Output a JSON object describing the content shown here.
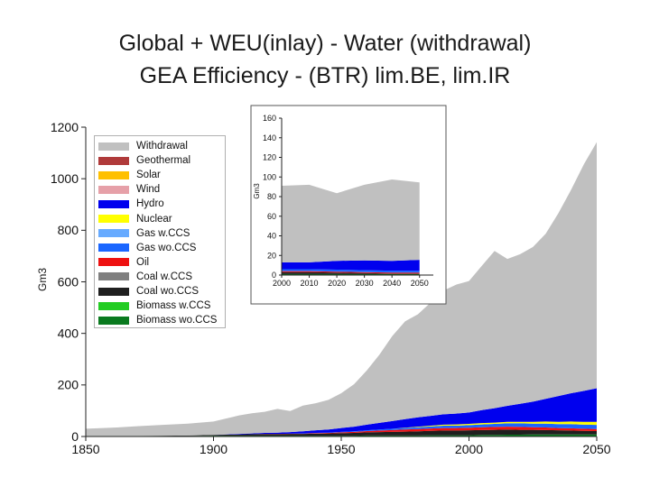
{
  "title": {
    "line1": "Global + WEU(inlay) - Water (withdrawal)",
    "line2": "GEA Efficiency - (BTR) lim.BE, lim.IR"
  },
  "chart_data": [
    {
      "type": "area",
      "ylabel": "Gm3",
      "xlim": [
        1850,
        2050
      ],
      "ylim": [
        0,
        1200
      ],
      "x_ticks": [
        "1850",
        "1900",
        "1950",
        "2000",
        "2050"
      ],
      "y_ticks": [
        "0",
        "200",
        "400",
        "600",
        "800",
        "1000",
        "1200"
      ],
      "legend": [
        "Withdrawal",
        "Geothermal",
        "Solar",
        "Wind",
        "Hydro",
        "Nuclear",
        "Gas w.CCS",
        "Gas wo.CCS",
        "Oil",
        "Coal w.CCS",
        "Coal wo.CCS",
        "Biomass w.CCS",
        "Biomass wo.CCS"
      ],
      "legend_position": "top-left",
      "x": [
        1850,
        1860,
        1870,
        1880,
        1890,
        1900,
        1905,
        1910,
        1915,
        1920,
        1925,
        1930,
        1935,
        1940,
        1945,
        1950,
        1955,
        1960,
        1965,
        1970,
        1975,
        1980,
        1985,
        1990,
        1995,
        2000,
        2005,
        2010,
        2015,
        2020,
        2025,
        2030,
        2035,
        2040,
        2045,
        2050
      ],
      "stack_order": [
        "Biomass wo.CCS",
        "Coal wo.CCS",
        "Oil",
        "Gas wo.CCS",
        "Nuclear",
        "Hydro",
        "Withdrawal"
      ],
      "series": [
        {
          "name": "Biomass wo.CCS",
          "color": "#0a7a1f",
          "values": [
            2,
            2,
            2,
            2,
            2,
            3,
            3,
            3,
            3,
            3,
            3,
            3,
            3,
            3,
            3,
            3,
            3,
            4,
            4,
            4,
            4,
            4,
            5,
            5,
            5,
            5,
            6,
            6,
            7,
            7,
            8,
            8,
            8,
            8,
            8,
            8
          ]
        },
        {
          "name": "Coal wo.CCS",
          "color": "#1f1f1f",
          "values": [
            0,
            0,
            0,
            1,
            2,
            3,
            4,
            5,
            6,
            6,
            6,
            7,
            7,
            8,
            9,
            10,
            11,
            12,
            13,
            14,
            15,
            16,
            17,
            18,
            18,
            19,
            19,
            20,
            20,
            19,
            18,
            17,
            16,
            15,
            14,
            13
          ]
        },
        {
          "name": "Oil",
          "color": "#ee1111",
          "values": [
            0,
            0,
            0,
            0,
            0,
            0,
            0,
            0,
            0,
            1,
            1,
            1,
            1,
            2,
            2,
            3,
            4,
            5,
            6,
            7,
            8,
            9,
            9,
            10,
            10,
            10,
            11,
            11,
            11,
            11,
            10,
            10,
            9,
            9,
            8,
            8
          ]
        },
        {
          "name": "Gas wo.CCS",
          "color": "#1a66ff",
          "values": [
            0,
            0,
            0,
            0,
            0,
            0,
            0,
            0,
            0,
            0,
            0,
            0,
            1,
            1,
            1,
            2,
            2,
            3,
            4,
            5,
            6,
            7,
            8,
            9,
            9,
            10,
            11,
            12,
            13,
            14,
            14,
            15,
            15,
            16,
            16,
            16
          ]
        },
        {
          "name": "Nuclear",
          "color": "#ffff00",
          "values": [
            0,
            0,
            0,
            0,
            0,
            0,
            0,
            0,
            0,
            0,
            0,
            0,
            0,
            0,
            0,
            0,
            0,
            0,
            0,
            0,
            1,
            2,
            3,
            4,
            5,
            5,
            5,
            5,
            6,
            6,
            7,
            8,
            9,
            10,
            11,
            12
          ]
        },
        {
          "name": "Hydro",
          "color": "#0000ee",
          "values": [
            0,
            0,
            0,
            0,
            0,
            0,
            1,
            2,
            3,
            4,
            5,
            6,
            8,
            10,
            12,
            15,
            18,
            22,
            26,
            30,
            33,
            36,
            38,
            40,
            42,
            44,
            50,
            56,
            62,
            70,
            78,
            88,
            100,
            110,
            120,
            130
          ]
        },
        {
          "name": "Withdrawal",
          "color": "#c0c0c0",
          "values": [
            28,
            32,
            38,
            42,
            46,
            52,
            62,
            72,
            78,
            82,
            92,
            82,
            100,
            105,
            115,
            135,
            165,
            210,
            265,
            330,
            380,
            400,
            440,
            480,
            500,
            510,
            560,
            610,
            570,
            580,
            600,
            640,
            710,
            790,
            880,
            955
          ]
        }
      ]
    },
    {
      "type": "area",
      "ylabel": "Gm3",
      "xlim": [
        2000,
        2055
      ],
      "ylim": [
        0,
        160
      ],
      "x_ticks": [
        "2000",
        "2010",
        "2020",
        "2030",
        "2040",
        "2050"
      ],
      "y_ticks": [
        "0",
        "20",
        "40",
        "60",
        "80",
        "100",
        "120",
        "140",
        "160"
      ],
      "x": [
        2000,
        2010,
        2020,
        2030,
        2040,
        2050
      ],
      "stack_order": [
        "Biomass wo.CCS",
        "Coal wo.CCS",
        "Oil",
        "Gas wo.CCS",
        "Hydro",
        "Withdrawal"
      ],
      "series": [
        {
          "name": "Biomass wo.CCS",
          "color": "#0a7a1f",
          "values": [
            1,
            1,
            1,
            1,
            1,
            1
          ]
        },
        {
          "name": "Coal wo.CCS",
          "color": "#1f1f1f",
          "values": [
            2,
            2,
            1.5,
            1,
            0.5,
            0.5
          ]
        },
        {
          "name": "Oil",
          "color": "#ee1111",
          "values": [
            1,
            1,
            1,
            1,
            1,
            1
          ]
        },
        {
          "name": "Gas wo.CCS",
          "color": "#1a66ff",
          "values": [
            2,
            2,
            2,
            2,
            2,
            2
          ]
        },
        {
          "name": "Hydro",
          "color": "#0000ee",
          "values": [
            7,
            7,
            9,
            10,
            10,
            11
          ]
        },
        {
          "name": "Withdrawal",
          "color": "#c0c0c0",
          "values": [
            78,
            79,
            69,
            77,
            83,
            79
          ]
        }
      ]
    }
  ]
}
